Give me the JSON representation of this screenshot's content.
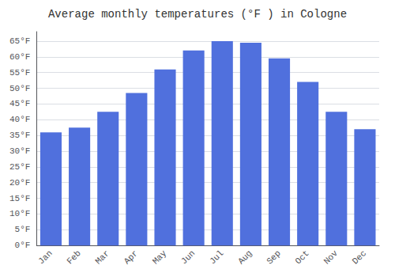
{
  "chart_data": {
    "type": "bar",
    "title": "Average monthly temperatures (°F ) in Cologne",
    "categories": [
      "Jan",
      "Feb",
      "Mar",
      "Apr",
      "May",
      "Jun",
      "Jul",
      "Aug",
      "Sep",
      "Oct",
      "Nov",
      "Dec"
    ],
    "values": [
      36,
      37.5,
      42.5,
      48.5,
      56,
      62,
      65,
      64.5,
      59.5,
      52,
      42.5,
      37
    ],
    "ylim": [
      0,
      68
    ],
    "yticks": [
      {
        "value": 0,
        "label": "0°F"
      },
      {
        "value": 5,
        "label": "5°F"
      },
      {
        "value": 10,
        "label": "10°F"
      },
      {
        "value": 15,
        "label": "15°F"
      },
      {
        "value": 20,
        "label": "20°F"
      },
      {
        "value": 25,
        "label": "25°F"
      },
      {
        "value": 30,
        "label": "30°F"
      },
      {
        "value": 35,
        "label": "35°F"
      },
      {
        "value": 40,
        "label": "40°F"
      },
      {
        "value": 45,
        "label": "45°F"
      },
      {
        "value": 50,
        "label": "50°F"
      },
      {
        "value": 55,
        "label": "55°F"
      },
      {
        "value": 60,
        "label": "60°F"
      },
      {
        "value": 65,
        "label": "65°F"
      }
    ],
    "grid": true
  }
}
